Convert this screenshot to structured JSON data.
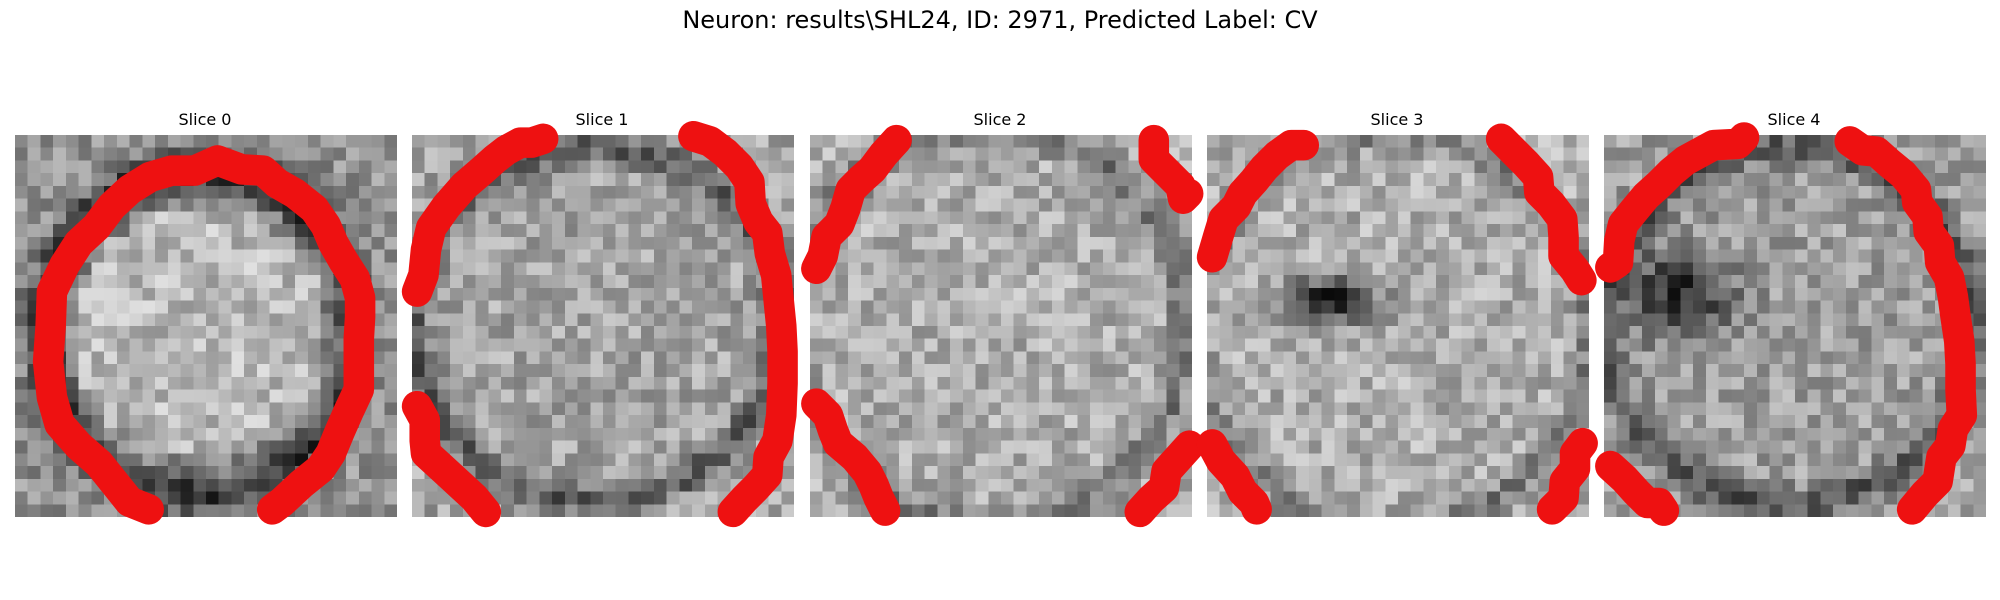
{
  "figure": {
    "title": "Neuron: results\\SHL24, ID: 2971, Predicted Label: CV"
  },
  "panels": [
    {
      "title": "Slice 0"
    },
    {
      "title": "Slice 1"
    },
    {
      "title": "Slice 2"
    },
    {
      "title": "Slice 3"
    },
    {
      "title": "Slice 4"
    }
  ],
  "colors": {
    "contour": "#ee1111",
    "colormap": "gray"
  }
}
